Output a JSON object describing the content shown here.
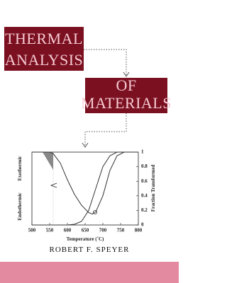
{
  "cover": {
    "title_lines": [
      "THERMAL",
      "ANALYSIS",
      "OF",
      "MATERIALS"
    ],
    "author": "ROBERT F. SPEYER"
  },
  "chart": {
    "type": "line",
    "xlabel": "Temperature (˚C)",
    "ylabel_left": [
      "Endothermic",
      "Exothermic"
    ],
    "ylabel_right": "Fraction Transformed",
    "xlim": [
      500,
      800
    ],
    "xticks": [
      500,
      550,
      600,
      650,
      700,
      750,
      800
    ],
    "ylim": [
      0,
      1
    ],
    "yticks": [
      0,
      0.2,
      0.4,
      0.6,
      0.8,
      1
    ],
    "series": [
      {
        "color": "#333333",
        "x": [
          500,
          550,
          560,
          580,
          600,
          620,
          640,
          660,
          670,
          680,
          700,
          720,
          740,
          760,
          800
        ],
        "values": [
          1,
          1,
          0.98,
          0.85,
          0.62,
          0.42,
          0.27,
          0.17,
          0.15,
          0.18,
          0.4,
          0.75,
          0.95,
          1,
          1
        ]
      },
      {
        "color": "#333333",
        "x": [
          500,
          550,
          600,
          620,
          640,
          660,
          680,
          700,
          720,
          740,
          760,
          800
        ],
        "values": [
          0,
          0,
          0,
          0.01,
          0.05,
          0.2,
          0.5,
          0.8,
          0.95,
          1,
          1,
          1
        ]
      }
    ]
  }
}
